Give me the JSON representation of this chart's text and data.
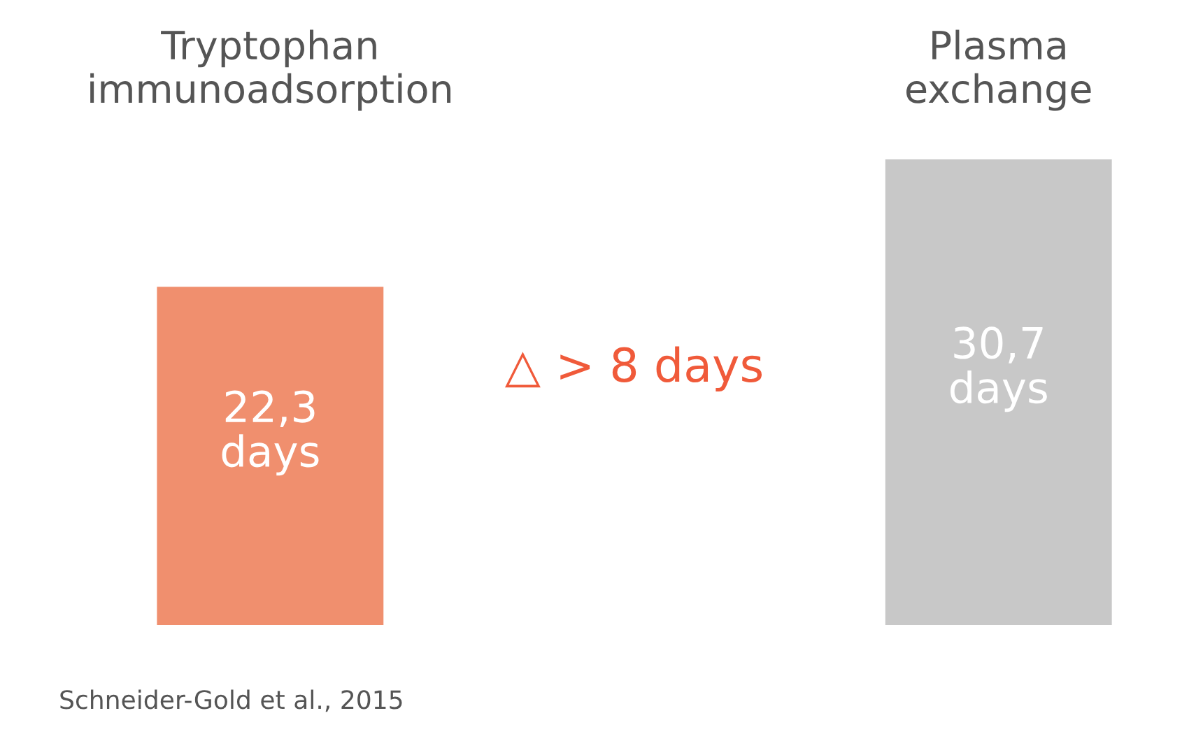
{
  "chart_data": {
    "type": "bar",
    "categories": [
      "Tryptophan\nimmunoadsorption",
      "Plasma\nexchange"
    ],
    "values": [
      22.3,
      30.7
    ],
    "colors": [
      "#f08f6e",
      "#c8c8c8"
    ],
    "value_labels": [
      "22,3\ndays",
      "30,7\ndays"
    ],
    "ylim": [
      0,
      30.7
    ],
    "annotations": [
      {
        "text": "△ > 8 days"
      },
      {
        "text": "Schneider-Gold et al., 2015"
      }
    ]
  }
}
